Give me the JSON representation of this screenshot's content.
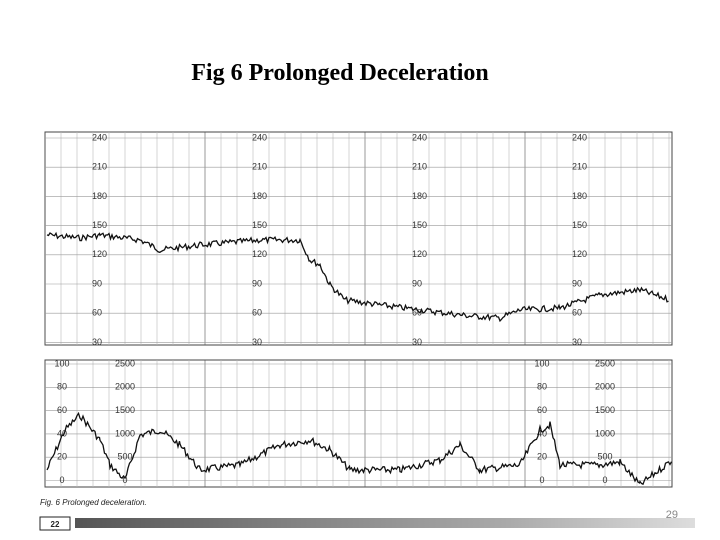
{
  "title": "Fig 6  Prolonged Deceleration",
  "page_number": "29",
  "figure": {
    "caption": "Fig. 6   Prolonged deceleration.",
    "figure_number": "22",
    "fhr_scale": [
      "240",
      "210",
      "180",
      "150",
      "120",
      "90",
      "60",
      "30"
    ],
    "ua_scale": [
      "100",
      "80",
      "60",
      "40",
      "20",
      "0"
    ],
    "pressure_scale": [
      "2500",
      "2000",
      "1500",
      "1000",
      "500",
      "0"
    ]
  }
}
